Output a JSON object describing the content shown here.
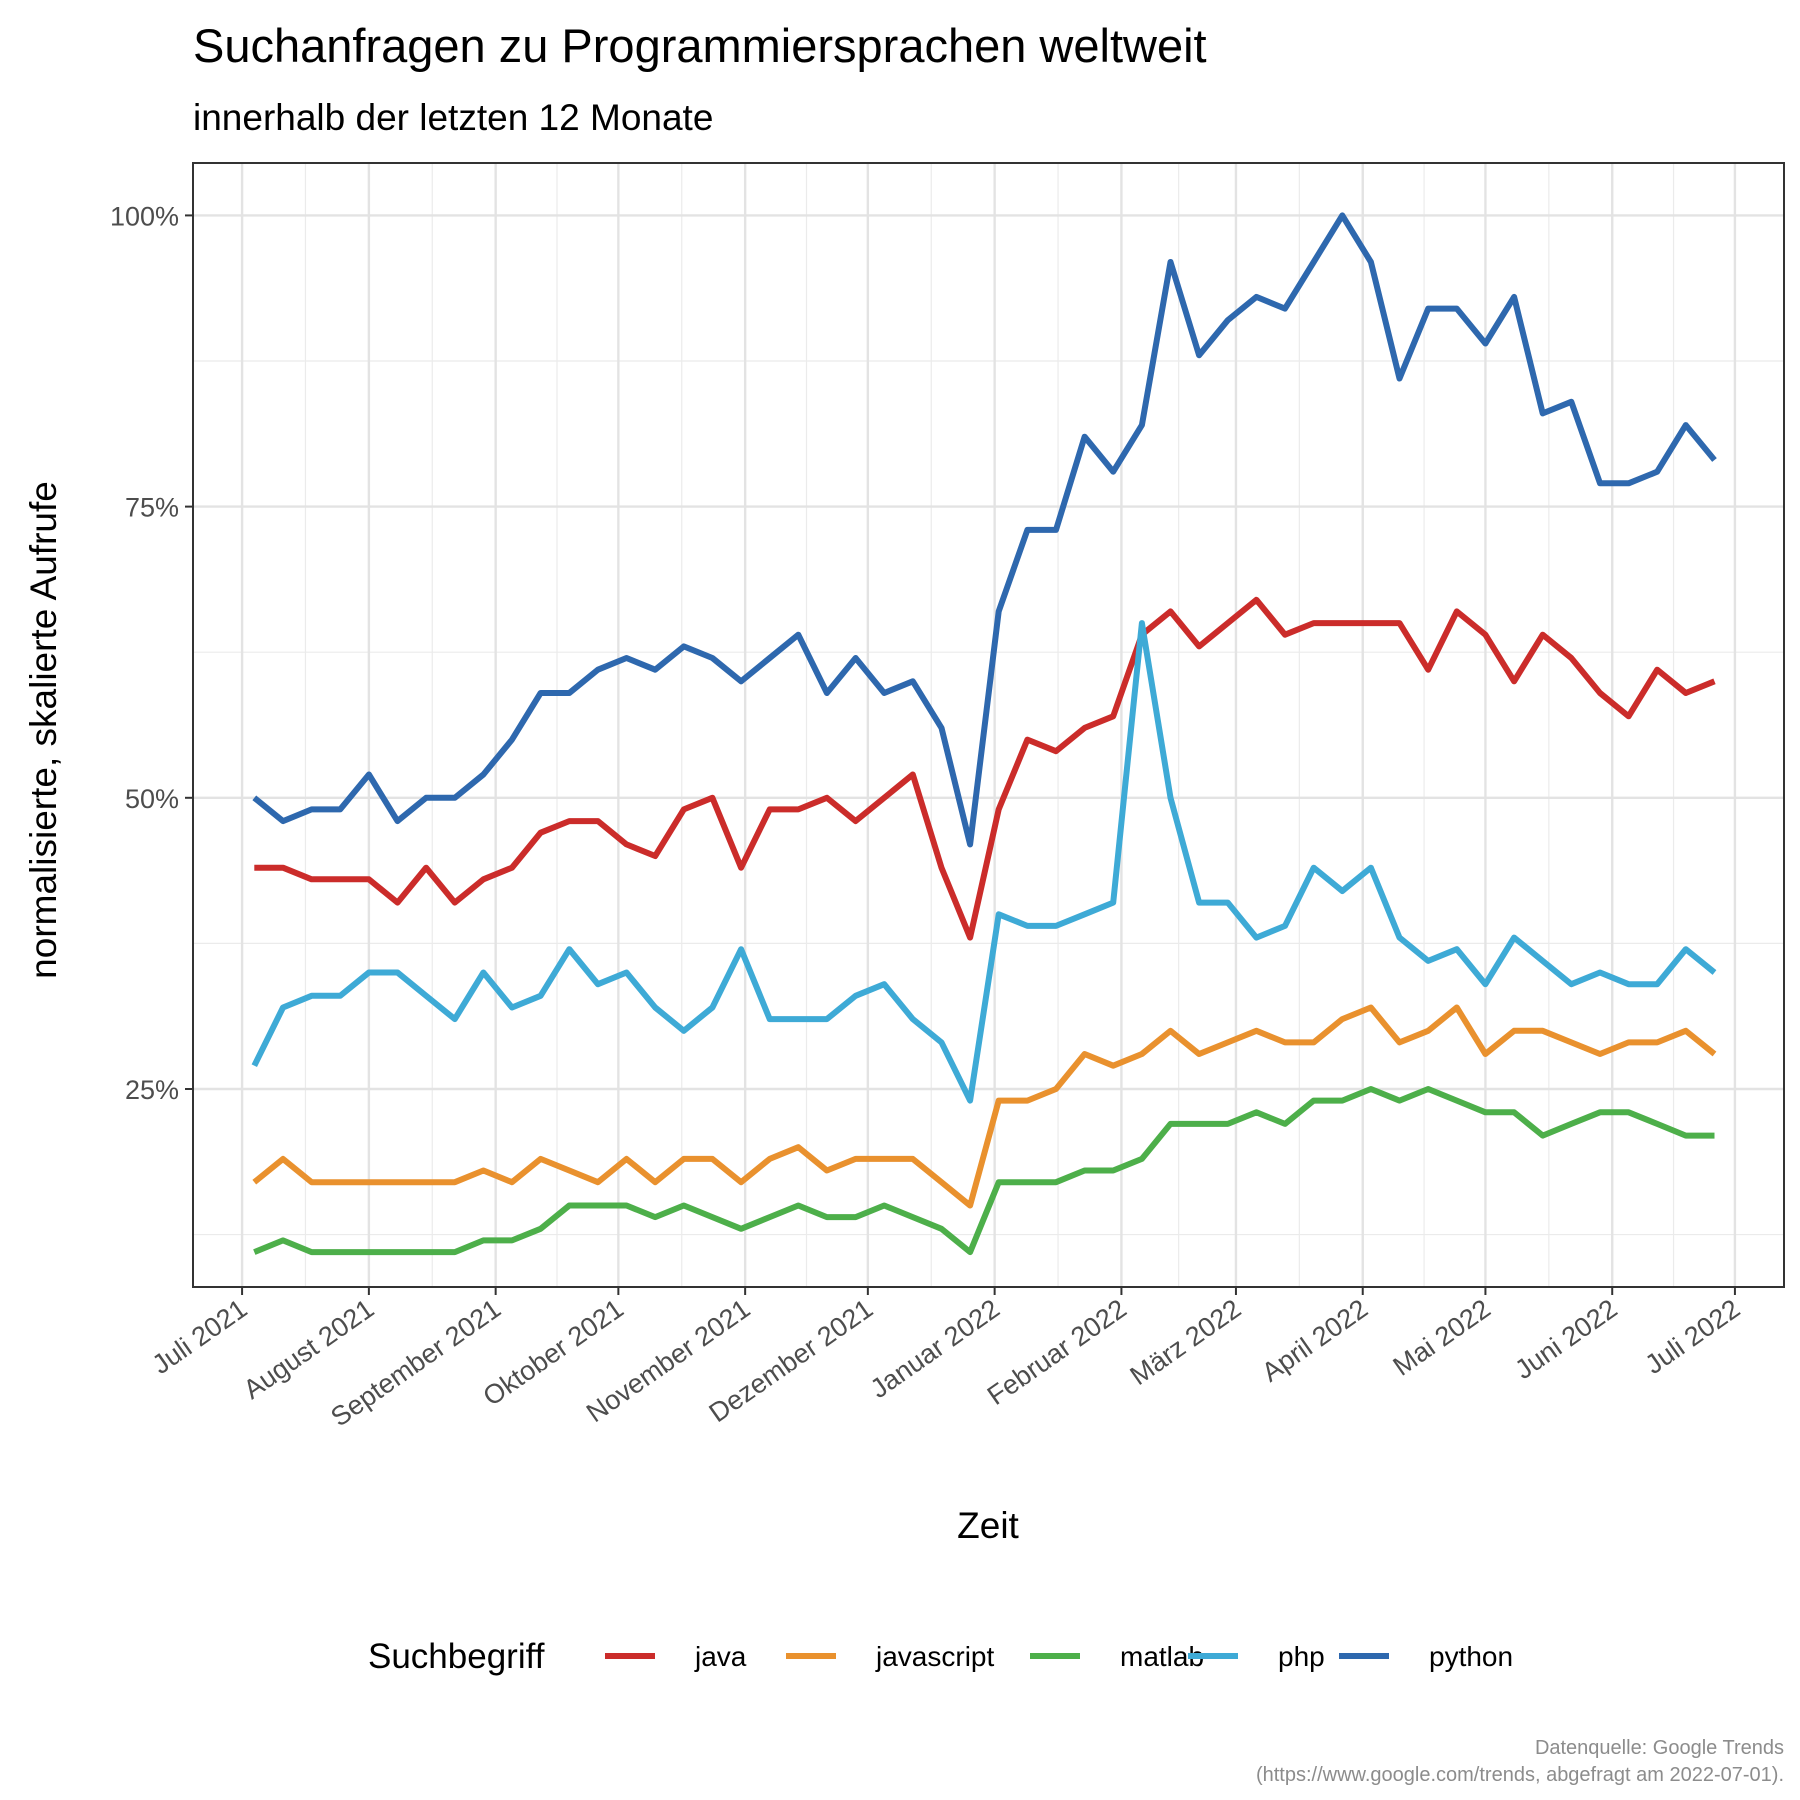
{
  "chart_data": {
    "type": "line",
    "title": "Suchanfragen zu Programmiersprachen weltweit",
    "subtitle": "innerhalb der letzten 12 Monate",
    "xlabel": "Zeit",
    "ylabel": "normalisierte, skalierte Aufrufe",
    "caption_lines": [
      "Datenquelle: Google Trends",
      "(https://www.google.com/trends, abgefragt am 2022-07-01)."
    ],
    "legend_title": "Suchbegriff",
    "legend_position": "bottom",
    "grid": true,
    "x_ticks": [
      {
        "date": "2021-07-01",
        "label": "Juli 2021"
      },
      {
        "date": "2021-08-01",
        "label": "August 2021"
      },
      {
        "date": "2021-09-01",
        "label": "September 2021"
      },
      {
        "date": "2021-10-01",
        "label": "Oktober 2021"
      },
      {
        "date": "2021-11-01",
        "label": "November 2021"
      },
      {
        "date": "2021-12-01",
        "label": "Dezember 2021"
      },
      {
        "date": "2022-01-01",
        "label": "Januar 2022"
      },
      {
        "date": "2022-02-01",
        "label": "Februar 2022"
      },
      {
        "date": "2022-03-01",
        "label": "März 2022"
      },
      {
        "date": "2022-04-01",
        "label": "April 2022"
      },
      {
        "date": "2022-05-01",
        "label": "Mai 2022"
      },
      {
        "date": "2022-06-01",
        "label": "Juni 2022"
      },
      {
        "date": "2022-07-01",
        "label": "Juli 2022"
      }
    ],
    "x_range": [
      "2021-06-19",
      "2022-07-13"
    ],
    "y_ticks": [
      {
        "value": 0.25,
        "label": "25%"
      },
      {
        "value": 0.5,
        "label": "50%"
      },
      {
        "value": 0.75,
        "label": "75%"
      },
      {
        "value": 1.0,
        "label": "100%"
      }
    ],
    "ylim": [
      0.08,
      1.045
    ],
    "x": [
      "2021-07-04",
      "2021-07-11",
      "2021-07-18",
      "2021-07-25",
      "2021-08-01",
      "2021-08-08",
      "2021-08-15",
      "2021-08-22",
      "2021-08-29",
      "2021-09-05",
      "2021-09-12",
      "2021-09-19",
      "2021-09-26",
      "2021-10-03",
      "2021-10-10",
      "2021-10-17",
      "2021-10-24",
      "2021-10-31",
      "2021-11-07",
      "2021-11-14",
      "2021-11-21",
      "2021-11-28",
      "2021-12-05",
      "2021-12-12",
      "2021-12-19",
      "2021-12-26",
      "2022-01-02",
      "2022-01-09",
      "2022-01-16",
      "2022-01-23",
      "2022-01-30",
      "2022-02-06",
      "2022-02-13",
      "2022-02-20",
      "2022-02-27",
      "2022-03-06",
      "2022-03-13",
      "2022-03-20",
      "2022-03-27",
      "2022-04-03",
      "2022-04-10",
      "2022-04-17",
      "2022-04-24",
      "2022-05-01",
      "2022-05-08",
      "2022-05-15",
      "2022-05-22",
      "2022-05-29",
      "2022-06-05",
      "2022-06-12",
      "2022-06-19",
      "2022-06-26"
    ],
    "series": [
      {
        "name": "java",
        "color": "#CB2C2A",
        "values": [
          0.44,
          0.44,
          0.43,
          0.43,
          0.43,
          0.41,
          0.44,
          0.41,
          0.43,
          0.44,
          0.47,
          0.48,
          0.48,
          0.46,
          0.45,
          0.49,
          0.5,
          0.44,
          0.49,
          0.49,
          0.5,
          0.48,
          0.5,
          0.52,
          0.44,
          0.38,
          0.49,
          0.55,
          0.54,
          0.56,
          0.57,
          0.64,
          0.66,
          0.63,
          0.65,
          0.67,
          0.64,
          0.65,
          0.65,
          0.65,
          0.65,
          0.61,
          0.66,
          0.64,
          0.6,
          0.64,
          0.62,
          0.59,
          0.57,
          0.61,
          0.59,
          0.6
        ]
      },
      {
        "name": "javascript",
        "color": "#E9912E",
        "values": [
          0.17,
          0.19,
          0.17,
          0.17,
          0.17,
          0.17,
          0.17,
          0.17,
          0.18,
          0.17,
          0.19,
          0.18,
          0.17,
          0.19,
          0.17,
          0.19,
          0.19,
          0.17,
          0.19,
          0.2,
          0.18,
          0.19,
          0.19,
          0.19,
          0.17,
          0.15,
          0.24,
          0.24,
          0.25,
          0.28,
          0.27,
          0.28,
          0.3,
          0.28,
          0.29,
          0.3,
          0.29,
          0.29,
          0.31,
          0.32,
          0.29,
          0.3,
          0.32,
          0.28,
          0.3,
          0.3,
          0.29,
          0.28,
          0.29,
          0.29,
          0.3,
          0.28
        ]
      },
      {
        "name": "matlab",
        "color": "#4DAF4A",
        "values": [
          0.11,
          0.12,
          0.11,
          0.11,
          0.11,
          0.11,
          0.11,
          0.11,
          0.12,
          0.12,
          0.13,
          0.15,
          0.15,
          0.15,
          0.14,
          0.15,
          0.14,
          0.13,
          0.14,
          0.15,
          0.14,
          0.14,
          0.15,
          0.14,
          0.13,
          0.11,
          0.17,
          0.17,
          0.17,
          0.18,
          0.18,
          0.19,
          0.22,
          0.22,
          0.22,
          0.23,
          0.22,
          0.24,
          0.24,
          0.25,
          0.24,
          0.25,
          0.24,
          0.23,
          0.23,
          0.21,
          0.22,
          0.23,
          0.23,
          0.22,
          0.21,
          0.21
        ]
      },
      {
        "name": "php",
        "color": "#3EAAD6",
        "values": [
          0.27,
          0.32,
          0.33,
          0.33,
          0.35,
          0.35,
          0.33,
          0.31,
          0.35,
          0.32,
          0.33,
          0.37,
          0.34,
          0.35,
          0.32,
          0.3,
          0.32,
          0.37,
          0.31,
          0.31,
          0.31,
          0.33,
          0.34,
          0.31,
          0.29,
          0.24,
          0.4,
          0.39,
          0.39,
          0.4,
          0.41,
          0.65,
          0.5,
          0.41,
          0.41,
          0.38,
          0.39,
          0.44,
          0.42,
          0.44,
          0.38,
          0.36,
          0.37,
          0.34,
          0.38,
          0.36,
          0.34,
          0.35,
          0.34,
          0.34,
          0.37,
          0.35
        ]
      },
      {
        "name": "python",
        "color": "#2E68AE",
        "values": [
          0.5,
          0.48,
          0.49,
          0.49,
          0.52,
          0.48,
          0.5,
          0.5,
          0.52,
          0.55,
          0.59,
          0.59,
          0.61,
          0.62,
          0.61,
          0.63,
          0.62,
          0.6,
          0.62,
          0.64,
          0.59,
          0.62,
          0.59,
          0.6,
          0.56,
          0.46,
          0.66,
          0.73,
          0.73,
          0.81,
          0.78,
          0.82,
          0.96,
          0.88,
          0.91,
          0.93,
          0.92,
          0.96,
          1.0,
          0.96,
          0.86,
          0.92,
          0.92,
          0.89,
          0.93,
          0.83,
          0.84,
          0.77,
          0.77,
          0.78,
          0.82,
          0.79
        ]
      }
    ]
  }
}
